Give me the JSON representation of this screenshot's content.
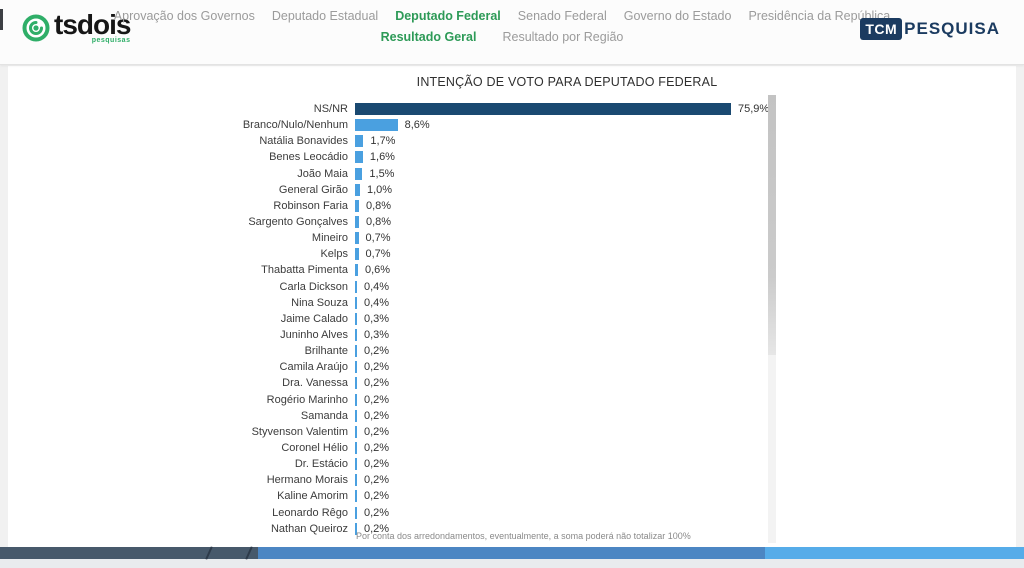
{
  "header": {
    "logo": {
      "brand": "tsdois",
      "sub": "pesquisas"
    },
    "nav_row1": [
      {
        "label": "Aprovação dos Governos",
        "active": false
      },
      {
        "label": "Deputado Estadual",
        "active": false
      },
      {
        "label": "Deputado Federal",
        "active": true
      },
      {
        "label": "Senado Federal",
        "active": false
      },
      {
        "label": "Governo do Estado",
        "active": false
      },
      {
        "label": "Presidência da República",
        "active": false
      }
    ],
    "nav_row2": [
      {
        "label": "Resultado Geral",
        "active": true
      },
      {
        "label": "Resultado por Região",
        "active": false
      }
    ],
    "right_logo": {
      "badge": "TCM",
      "text": "PESQUISA"
    }
  },
  "chart_data": {
    "type": "bar",
    "orientation": "horizontal",
    "title": "INTENÇÃO DE VOTO PARA DEPUTADO FEDERAL",
    "categories": [
      "NS/NR",
      "Branco/Nulo/Nenhum",
      "Natália Bonavides",
      "Benes Leocádio",
      "João Maia",
      "General Girão",
      "Robinson Faria",
      "Sargento Gonçalves",
      "Mineiro",
      "Kelps",
      "Thabatta Pimenta",
      "Carla Dickson",
      "Nina Souza",
      "Jaime Calado",
      "Juninho Alves",
      "Brilhante",
      "Camila Araújo",
      "Dra. Vanessa",
      "Rogério Marinho",
      "Samanda",
      "Styvenson Valentim",
      "Coronel Hélio",
      "Dr. Estácio",
      "Hermano Morais",
      "Kaline Amorim",
      "Leonardo Rêgo",
      "Nathan Queiroz"
    ],
    "values": [
      75.9,
      8.6,
      1.7,
      1.6,
      1.5,
      1.0,
      0.8,
      0.8,
      0.7,
      0.7,
      0.6,
      0.4,
      0.4,
      0.3,
      0.3,
      0.2,
      0.2,
      0.2,
      0.2,
      0.2,
      0.2,
      0.2,
      0.2,
      0.2,
      0.2,
      0.2,
      0.2
    ],
    "value_labels": [
      "75,9%",
      "8,6%",
      "1,7%",
      "1,6%",
      "1,5%",
      "1,0%",
      "0,8%",
      "0,8%",
      "0,7%",
      "0,7%",
      "0,6%",
      "0,4%",
      "0,4%",
      "0,3%",
      "0,3%",
      "0,2%",
      "0,2%",
      "0,2%",
      "0,2%",
      "0,2%",
      "0,2%",
      "0,2%",
      "0,2%",
      "0,2%",
      "0,2%",
      "0,2%",
      "0,2%"
    ],
    "xlim": [
      0,
      80
    ],
    "legend": "none",
    "grid": false,
    "footnote": "Por conta dos arredondamentos, eventualmente, a soma poderá não totalizar 100%"
  },
  "colors": {
    "bar_primary": "#1a4971",
    "bar_secondary": "#4aa0e0",
    "nav_active": "#2d9a57",
    "brand_green": "#2fae68",
    "tcm_navy": "#1b3b60",
    "footer_dark": "#47596b",
    "footer_mid": "#4c86c3",
    "footer_light": "#56ace9"
  }
}
